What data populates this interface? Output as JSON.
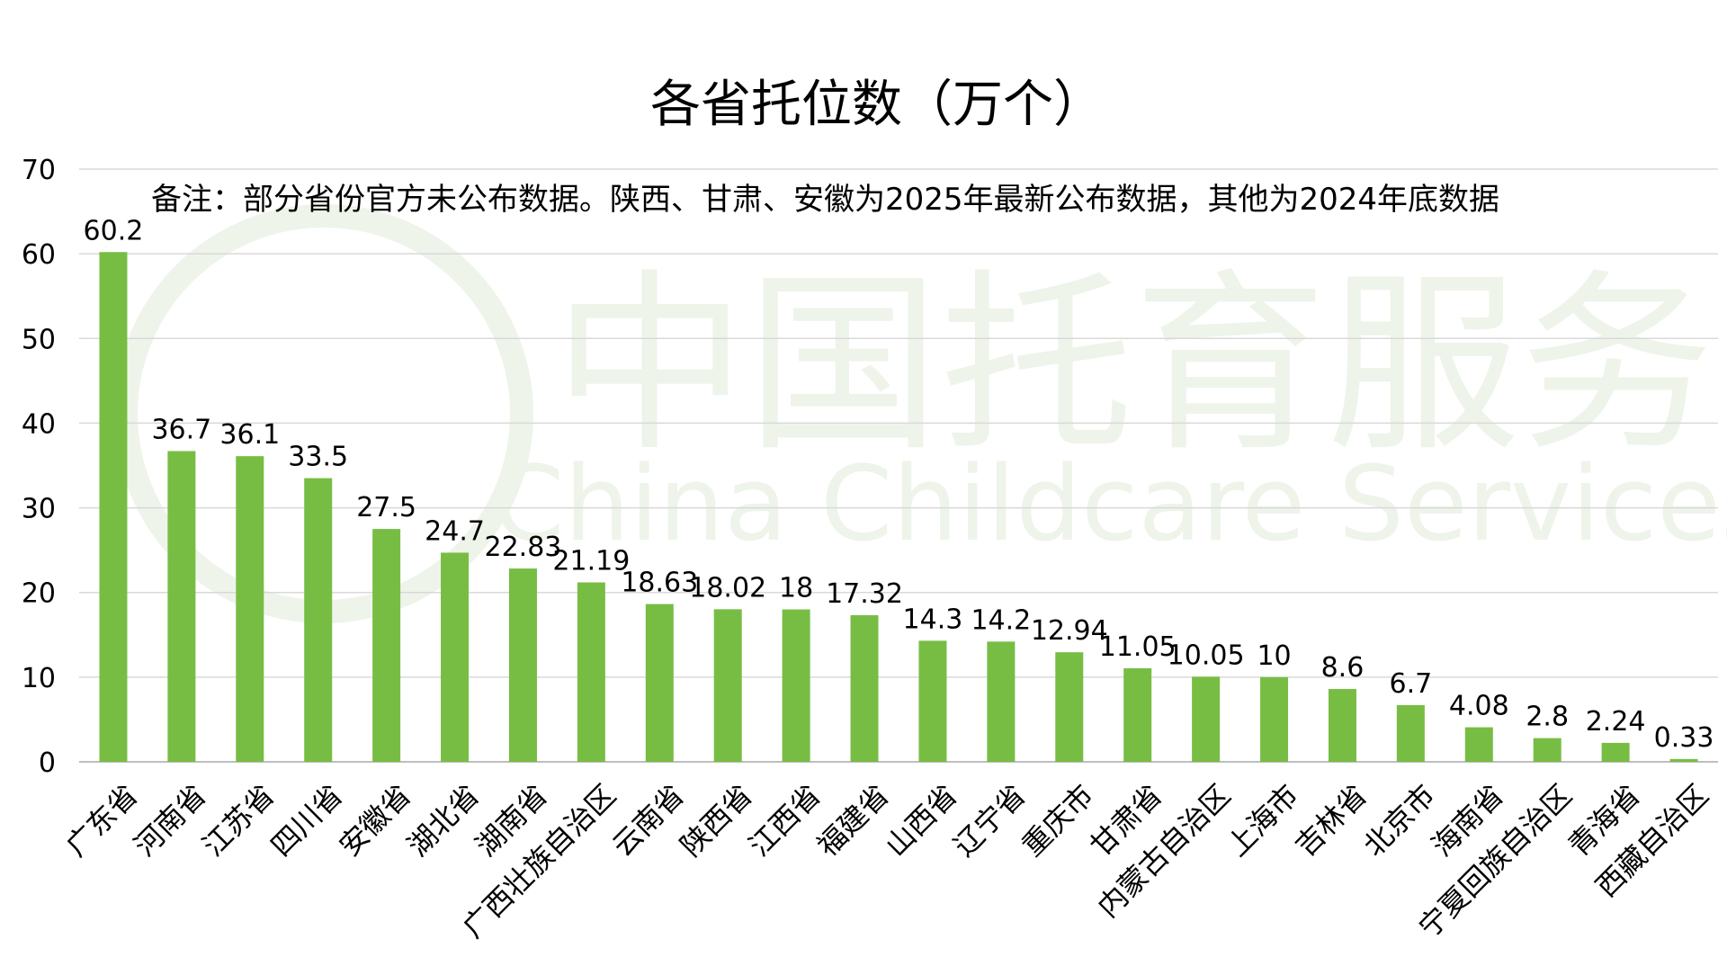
{
  "watermark": {
    "cn": "中国托育服务",
    "en": "China Childcare Services"
  },
  "colors": {
    "bar": "#77bd43",
    "grid": "#d9d9d9",
    "axis": "#bfbfbf",
    "text": "#000000",
    "watermark": "#eef4ea"
  },
  "chart_data": {
    "type": "bar",
    "title": "各省托位数（万个）",
    "annotation": "备注：部分省份官方未公布数据。陕西、甘肃、安徽为2025年最新公布数据，其他为2024年底数据",
    "xlabel": "",
    "ylabel": "",
    "ylim": [
      0,
      70
    ],
    "yticks": [
      0,
      10,
      20,
      30,
      40,
      50,
      60,
      70
    ],
    "grid": true,
    "legend": "none",
    "categories": [
      "广东省",
      "河南省",
      "江苏省",
      "四川省",
      "安徽省",
      "湖北省",
      "湖南省",
      "广西壮族自治区",
      "云南省",
      "陕西省",
      "江西省",
      "福建省",
      "山西省",
      "辽宁省",
      "重庆市",
      "甘肃省",
      "内蒙古自治区",
      "上海市",
      "吉林省",
      "北京市",
      "海南省",
      "宁夏回族自治区",
      "青海省",
      "西藏自治区"
    ],
    "values": [
      60.2,
      36.7,
      36.1,
      33.5,
      27.5,
      24.7,
      22.83,
      21.19,
      18.63,
      18.02,
      18,
      17.32,
      14.3,
      14.2,
      12.94,
      11.05,
      10.05,
      10,
      8.6,
      6.7,
      4.08,
      2.8,
      2.24,
      0.33
    ],
    "value_labels": [
      "60.2",
      "36.7",
      "36.1",
      "33.5",
      "27.5",
      "24.7",
      "22.83",
      "21.19",
      "18.63",
      "18.02",
      "18",
      "17.32",
      "14.3",
      "14.2",
      "12.94",
      "11.05",
      "10.05",
      "10",
      "8.6",
      "6.7",
      "4.08",
      "2.8",
      "2.24",
      "0.33"
    ]
  }
}
